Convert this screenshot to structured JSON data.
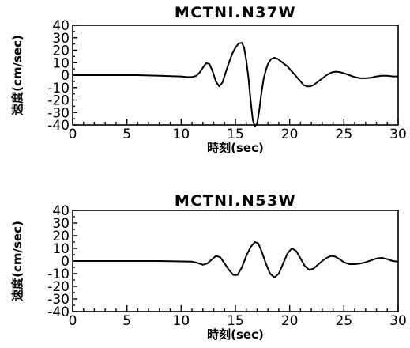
{
  "chart_data": [
    {
      "type": "line",
      "title": "MCTNI.N37W",
      "xlabel": "時刻(sec)",
      "ylabel": "速度(cm/sec)",
      "xlim": [
        0,
        30
      ],
      "ylim": [
        -40,
        40
      ],
      "xticks": [
        "0",
        "5",
        "10",
        "15",
        "20",
        "25",
        "30"
      ],
      "yticks": [
        "40",
        "30",
        "20",
        "10",
        "0",
        "-10",
        "-20",
        "-30",
        "-40"
      ],
      "grid": false,
      "series": [
        {
          "x": [
            0,
            2,
            4,
            6,
            8,
            9,
            10,
            10.5,
            11,
            11.4,
            11.7,
            12,
            12.3,
            12.6,
            12.9,
            13.2,
            13.5,
            13.8,
            14.1,
            14.4,
            14.7,
            15.0,
            15.3,
            15.6,
            15.8,
            16.0,
            16.2,
            16.4,
            16.6,
            16.8,
            17.0,
            17.2,
            17.4,
            17.6,
            17.8,
            18.0,
            18.3,
            18.6,
            18.9,
            19.2,
            19.5,
            19.8,
            20.1,
            20.4,
            20.7,
            21.0,
            21.3,
            21.6,
            21.9,
            22.2,
            22.5,
            22.8,
            23.1,
            23.4,
            23.7,
            24.0,
            24.3,
            24.6,
            25.0,
            25.5,
            26.0,
            26.5,
            27.0,
            27.5,
            28.0,
            28.5,
            29.0,
            29.5,
            30.0
          ],
          "y": [
            0,
            0,
            0,
            0,
            -0.5,
            -0.8,
            -1,
            -1.5,
            -1.5,
            -0.5,
            2,
            6,
            9.5,
            9,
            3,
            -5,
            -9,
            -6,
            2,
            10,
            17,
            22,
            25.5,
            26,
            22,
            12,
            -2,
            -20,
            -36,
            -41,
            -39,
            -28,
            -14,
            -3,
            4,
            9,
            13,
            14,
            13,
            11,
            9,
            7,
            4,
            1,
            -2,
            -5,
            -8,
            -9,
            -9,
            -8,
            -6,
            -4,
            -2,
            0,
            1.5,
            2.5,
            2.8,
            2.5,
            1.5,
            0,
            -1.5,
            -2.5,
            -2.5,
            -2,
            -1,
            -0.5,
            -0.5,
            -1,
            -1
          ]
        }
      ]
    },
    {
      "type": "line",
      "title": "MCTNI.N53W",
      "xlabel": "時刻(sec)",
      "ylabel": "速度(cm/sec)",
      "xlim": [
        0,
        30
      ],
      "ylim": [
        -40,
        40
      ],
      "xticks": [
        "0",
        "5",
        "10",
        "15",
        "20",
        "25",
        "30"
      ],
      "yticks": [
        "40",
        "30",
        "20",
        "10",
        "0",
        "-10",
        "-20",
        "-30",
        "-40"
      ],
      "grid": false,
      "series": [
        {
          "x": [
            0,
            2,
            4,
            6,
            8,
            10,
            11,
            11.5,
            12,
            12.4,
            12.8,
            13.2,
            13.6,
            14.0,
            14.4,
            14.8,
            15.2,
            15.6,
            16.0,
            16.4,
            16.8,
            17.1,
            17.4,
            17.8,
            18.2,
            18.6,
            19.0,
            19.4,
            19.8,
            20.2,
            20.6,
            21.0,
            21.4,
            21.8,
            22.2,
            22.6,
            23.0,
            23.4,
            23.8,
            24.2,
            24.6,
            25.0,
            25.5,
            26.0,
            26.5,
            27.0,
            27.5,
            28.0,
            28.5,
            29.0,
            29.5,
            30.0
          ],
          "y": [
            0,
            0,
            0,
            0,
            0,
            -0.3,
            -0.5,
            -1.5,
            -3,
            -2,
            1,
            4,
            3,
            -2,
            -7,
            -11,
            -11,
            -5,
            4,
            11,
            15,
            14,
            8,
            -2,
            -10,
            -13,
            -10,
            -2,
            6,
            10,
            8,
            2,
            -4,
            -7,
            -6,
            -3,
            0,
            2.5,
            4,
            3.5,
            1.5,
            -1,
            -2.5,
            -2.5,
            -2,
            -1,
            0.5,
            2,
            2.5,
            1.5,
            0,
            -0.5
          ]
        }
      ]
    }
  ]
}
